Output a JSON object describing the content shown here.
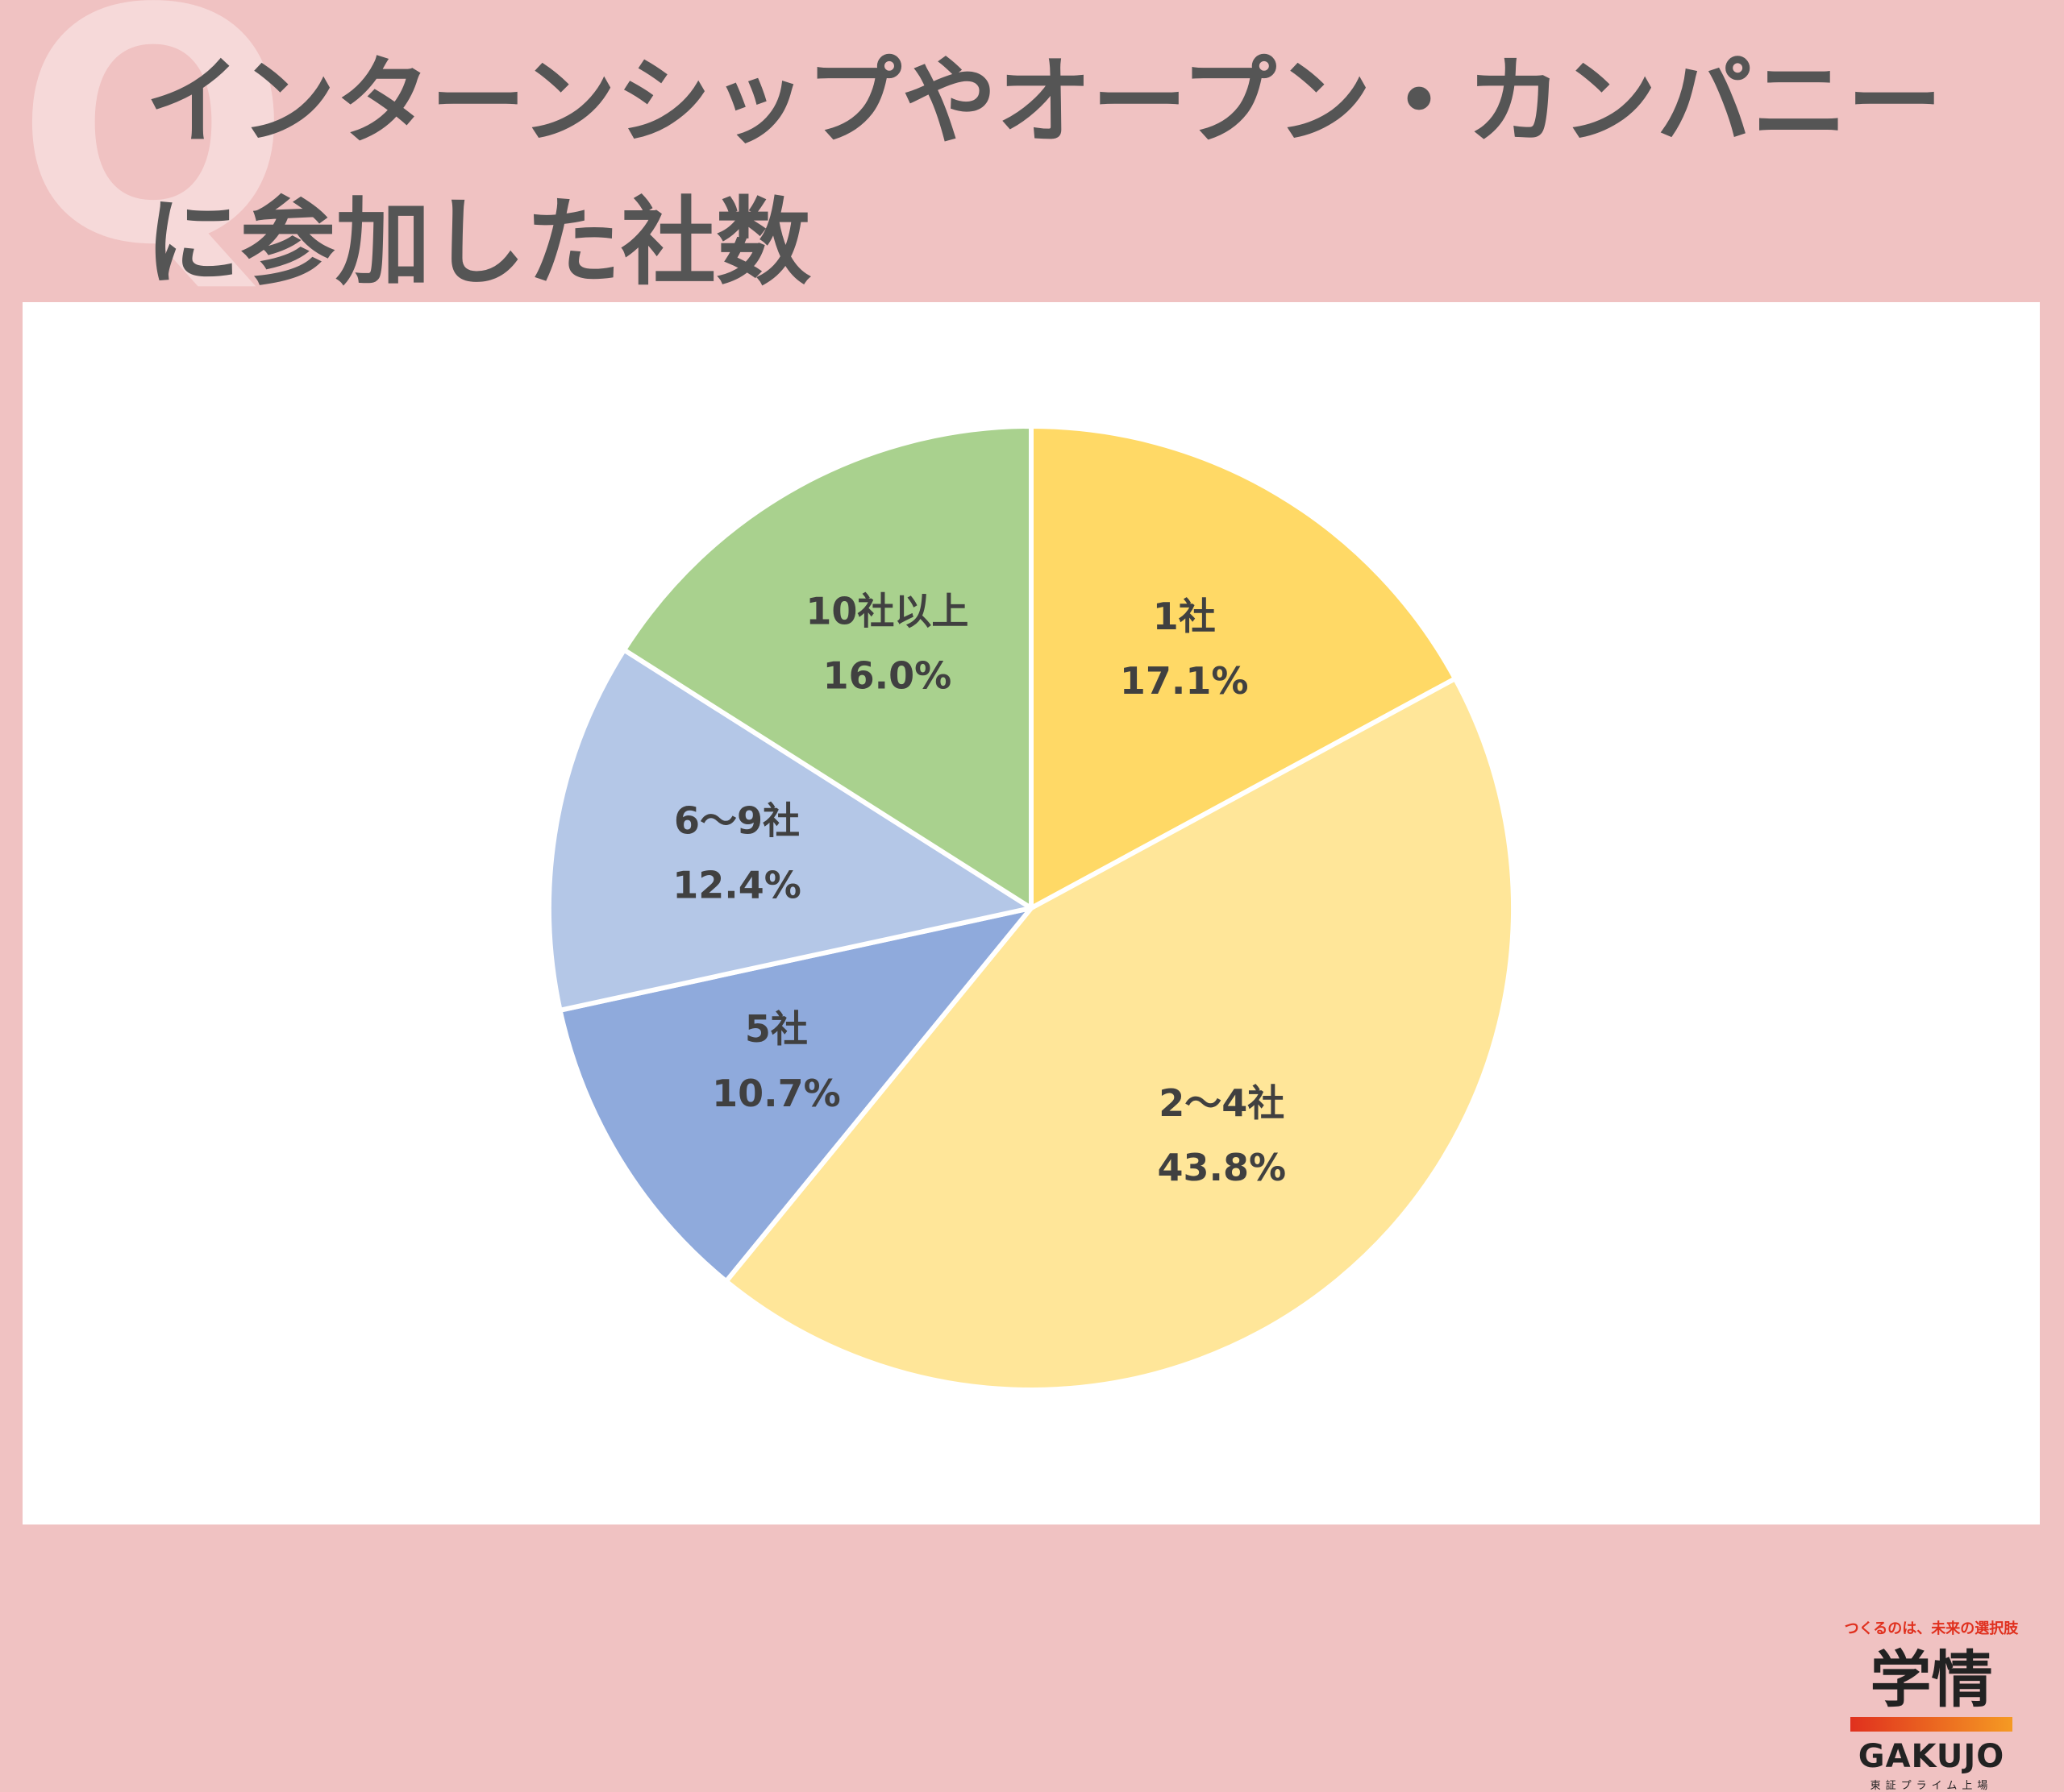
{
  "header": {
    "q_mark": "Q",
    "title_line1": "インターンシップやオープン・カンパニー",
    "title_line2": "に参加した社数"
  },
  "colors": {
    "background": "#f0c2c2",
    "title_text": "#555555",
    "label_text": "#404040"
  },
  "chart_data": {
    "type": "pie",
    "title": "インターンシップやオープン・カンパニーに参加した社数",
    "start_angle_deg": 0,
    "direction": "clockwise",
    "slices": [
      {
        "label": "1社",
        "value": 17.1,
        "value_label": "17.1%",
        "color": "#ffd966"
      },
      {
        "label": "2～4社",
        "value": 43.8,
        "value_label": "43.8%",
        "color": "#ffe699"
      },
      {
        "label": "5社",
        "value": 10.7,
        "value_label": "10.7%",
        "color": "#8faadc"
      },
      {
        "label": "6～9社",
        "value": 12.4,
        "value_label": "12.4%",
        "color": "#b4c7e7"
      },
      {
        "label": "10社以上",
        "value": 16.0,
        "value_label": "16.0%",
        "color": "#a9d18e"
      }
    ]
  },
  "logo": {
    "tagline": "つくるのは、未来の選択肢",
    "mark": "学情",
    "name_en": "GAKUJO",
    "subtitle": "東証プライム上場"
  }
}
